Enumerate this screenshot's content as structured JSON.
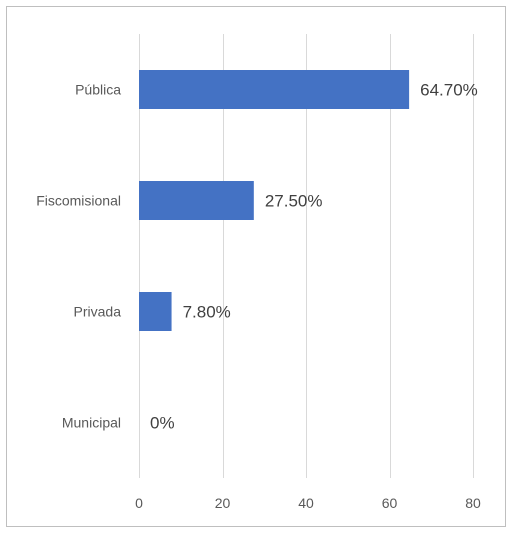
{
  "chart_data": {
    "type": "bar",
    "orientation": "horizontal",
    "categories": [
      "Pública",
      "Fiscomisional",
      "Privada",
      "Municipal"
    ],
    "values": [
      64.7,
      27.5,
      7.8,
      0
    ],
    "data_labels": [
      "64.70%",
      "27.50%",
      "7.80%",
      "0%"
    ],
    "title": "",
    "xlabel": "",
    "ylabel": "",
    "xlim": [
      0,
      80
    ],
    "x_ticks": [
      0,
      20,
      40,
      60,
      80
    ],
    "grid": "vertical",
    "legend": "none",
    "bar_color": "#4472c4"
  }
}
